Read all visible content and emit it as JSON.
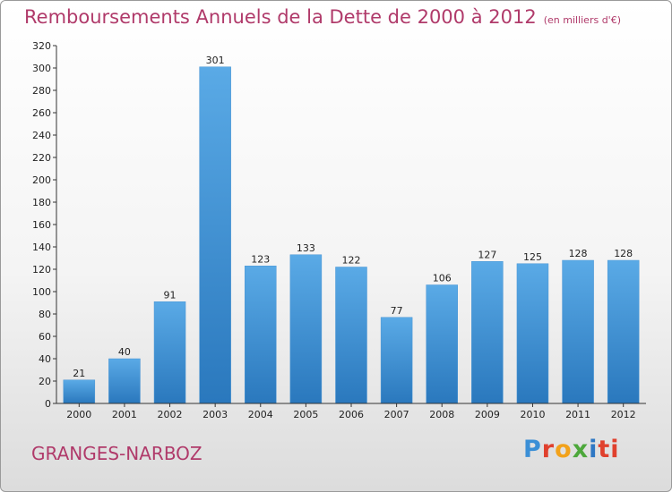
{
  "title": "Remboursements Annuels de la Dette de 2000 à 2012",
  "unit": "(en milliers d'€)",
  "commune": "GRANGES-NARBOZ",
  "logo": {
    "p": "P",
    "r": "r",
    "o": "o",
    "x": "x",
    "i": "i",
    "ti": "ti"
  },
  "colors": {
    "title": "#b03a6a",
    "bar_light": "#5aaae6",
    "bar_dark": "#2a78bd"
  },
  "chart_data": {
    "type": "bar",
    "categories": [
      "2000",
      "2001",
      "2002",
      "2003",
      "2004",
      "2005",
      "2006",
      "2007",
      "2008",
      "2009",
      "2010",
      "2011",
      "2012"
    ],
    "values": [
      21,
      40,
      91,
      301,
      123,
      133,
      122,
      77,
      106,
      127,
      125,
      128,
      128
    ],
    "ylim": [
      0,
      320
    ],
    "yticks": [
      0,
      20,
      40,
      60,
      80,
      100,
      120,
      140,
      160,
      180,
      200,
      220,
      240,
      260,
      280,
      300,
      320
    ],
    "grid": false,
    "legend": "none"
  }
}
